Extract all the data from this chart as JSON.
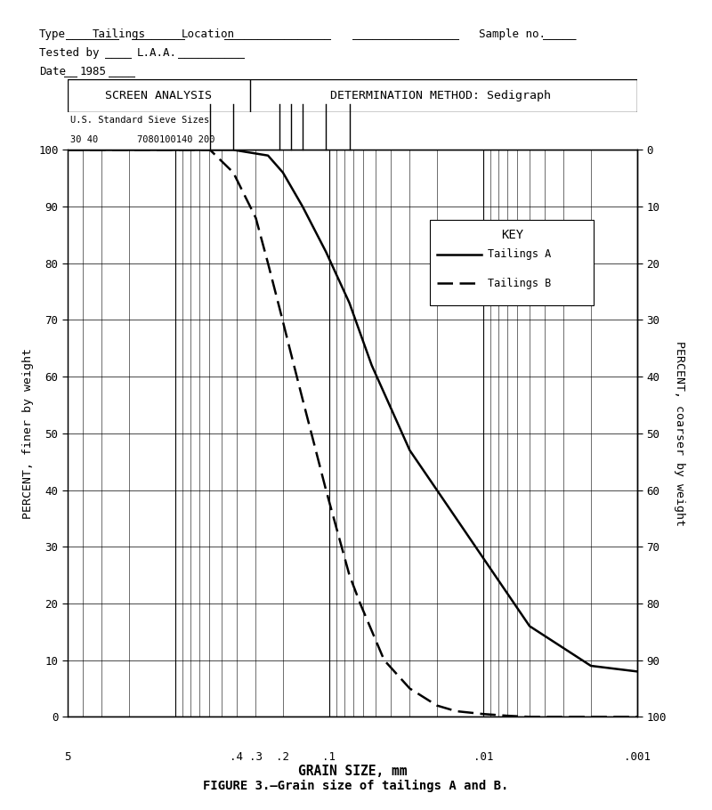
{
  "table_left": "SCREEN ANALYSIS",
  "table_right": "DETERMINATION METHOD: Sedigraph",
  "sieve_label": "U.S. Standard Sieve Sizes",
  "sieve_numbers": "30 40       7080100140 200",
  "xlabel": "GRAIN SIZE, mm",
  "ylabel_left": "PERCENT, finer by weight",
  "ylabel_right": "PERCENT, coarser by weight",
  "figure_caption": "FIGURE 3.–Grain size of tailings A and B.",
  "xmin": 0.001,
  "xmax": 5.0,
  "ymin": 0,
  "ymax": 100,
  "tailings_A_x": [
    5.0,
    2.0,
    0.42,
    0.25,
    0.2,
    0.149,
    0.105,
    0.074,
    0.053,
    0.03,
    0.02,
    0.01,
    0.005,
    0.002,
    0.001
  ],
  "tailings_A_y": [
    100,
    100,
    100,
    99,
    96,
    90,
    82,
    73,
    62,
    47,
    40,
    28,
    16,
    9,
    8
  ],
  "tailings_B_x": [
    5.0,
    0.595,
    0.42,
    0.3,
    0.25,
    0.21,
    0.177,
    0.149,
    0.125,
    0.105,
    0.074,
    0.063,
    0.044,
    0.03,
    0.02,
    0.015,
    0.01,
    0.007,
    0.005,
    0.003,
    0.002,
    0.001
  ],
  "tailings_B_y": [
    100,
    100,
    96,
    88,
    80,
    72,
    64,
    56,
    48,
    40,
    25,
    20,
    10,
    5,
    2,
    1,
    0.5,
    0.2,
    0,
    0,
    0,
    0
  ],
  "sieve_mm": [
    0.595,
    0.42,
    0.21,
    0.177,
    0.149,
    0.105,
    0.074
  ],
  "bg_color": "#ffffff",
  "line_color": "#000000"
}
